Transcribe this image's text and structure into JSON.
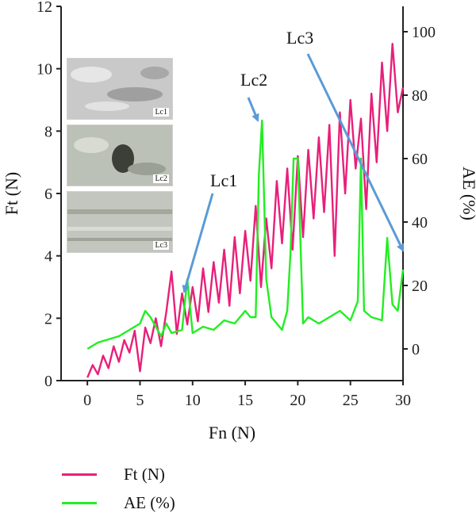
{
  "chart_data": {
    "type": "line",
    "xlabel": "Fn (N)",
    "ylabel": "Ft (N)",
    "y2label": "AE (%)",
    "xlim": [
      -2.5,
      30
    ],
    "ylim": [
      0,
      12
    ],
    "y2lim": [
      -10,
      108
    ],
    "xticks": [
      0,
      5,
      10,
      15,
      20,
      25,
      30
    ],
    "yticks": [
      0,
      2,
      4,
      6,
      8,
      10,
      12
    ],
    "y2ticks": [
      0,
      20,
      40,
      60,
      80,
      100
    ],
    "grid": false,
    "legend": "bottom-left",
    "series": [
      {
        "name": "Ft (N)",
        "axis": "left",
        "color": "#e8207a",
        "x": [
          0,
          0.5,
          1,
          1.5,
          2,
          2.5,
          3,
          3.5,
          4,
          4.5,
          5,
          5.5,
          6,
          6.5,
          7,
          7.5,
          8,
          8.5,
          9,
          9.5,
          10,
          10.5,
          11,
          11.5,
          12,
          12.5,
          13,
          13.5,
          14,
          14.5,
          15,
          15.5,
          16,
          16.5,
          17,
          17.5,
          18,
          18.5,
          19,
          19.5,
          20,
          20.5,
          21,
          21.5,
          22,
          22.5,
          23,
          23.5,
          24,
          24.5,
          25,
          25.5,
          26,
          26.5,
          27,
          27.5,
          28,
          28.5,
          29,
          29.5,
          30
        ],
        "values": [
          0.1,
          0.5,
          0.2,
          0.8,
          0.4,
          1.1,
          0.6,
          1.3,
          0.9,
          1.6,
          0.3,
          1.7,
          1.2,
          2.0,
          1.1,
          2.2,
          3.5,
          1.5,
          2.8,
          1.8,
          3.0,
          1.9,
          3.6,
          2.2,
          3.8,
          2.5,
          4.2,
          2.4,
          4.6,
          2.8,
          4.8,
          3.2,
          5.6,
          3.0,
          5.2,
          3.6,
          6.4,
          4.4,
          6.8,
          4.2,
          7.2,
          4.6,
          7.4,
          5.2,
          7.8,
          5.4,
          8.2,
          4.0,
          8.6,
          6.0,
          9.0,
          6.8,
          8.4,
          5.5,
          9.2,
          7.0,
          10.2,
          8.0,
          10.8,
          8.6,
          9.4
        ]
      },
      {
        "name": "AE (%)",
        "axis": "right",
        "color": "#22ee22",
        "x": [
          0,
          1,
          2,
          3,
          4,
          5,
          5.5,
          6,
          7,
          7.5,
          8,
          9,
          9.5,
          10,
          11,
          12,
          13,
          14,
          15,
          15.5,
          16,
          16.3,
          16.6,
          17,
          17.5,
          18,
          18.5,
          19,
          19.3,
          19.6,
          20,
          20.5,
          21,
          22,
          23,
          24,
          25,
          25.7,
          26,
          26.3,
          27,
          28,
          28.5,
          29,
          29.5,
          30
        ],
        "values": [
          0,
          2,
          3,
          4,
          6,
          8,
          12,
          10,
          4,
          8,
          5,
          6,
          22,
          5,
          7,
          6,
          9,
          8,
          12,
          10,
          10,
          55,
          72,
          22,
          10,
          8,
          6,
          12,
          30,
          60,
          60,
          8,
          10,
          8,
          10,
          12,
          9,
          15,
          60,
          12,
          10,
          9,
          35,
          14,
          12,
          25
        ]
      }
    ],
    "annotations": [
      {
        "label": "Lc1",
        "x": 9.2,
        "y2": 18
      },
      {
        "label": "Lc2",
        "x": 16.2,
        "y2": 72
      },
      {
        "label": "Lc3",
        "x": 30,
        "y2": 31
      }
    ]
  },
  "insets": [
    {
      "tag": "Lc1",
      "bg": "#c9c9c9"
    },
    {
      "tag": "Lc2",
      "bg": "#bcc1b8"
    },
    {
      "tag": "Lc3",
      "bg": "#c3c6bf"
    }
  ],
  "legend": {
    "ft_label": "Ft (N)",
    "ae_label": "AE (%)"
  }
}
